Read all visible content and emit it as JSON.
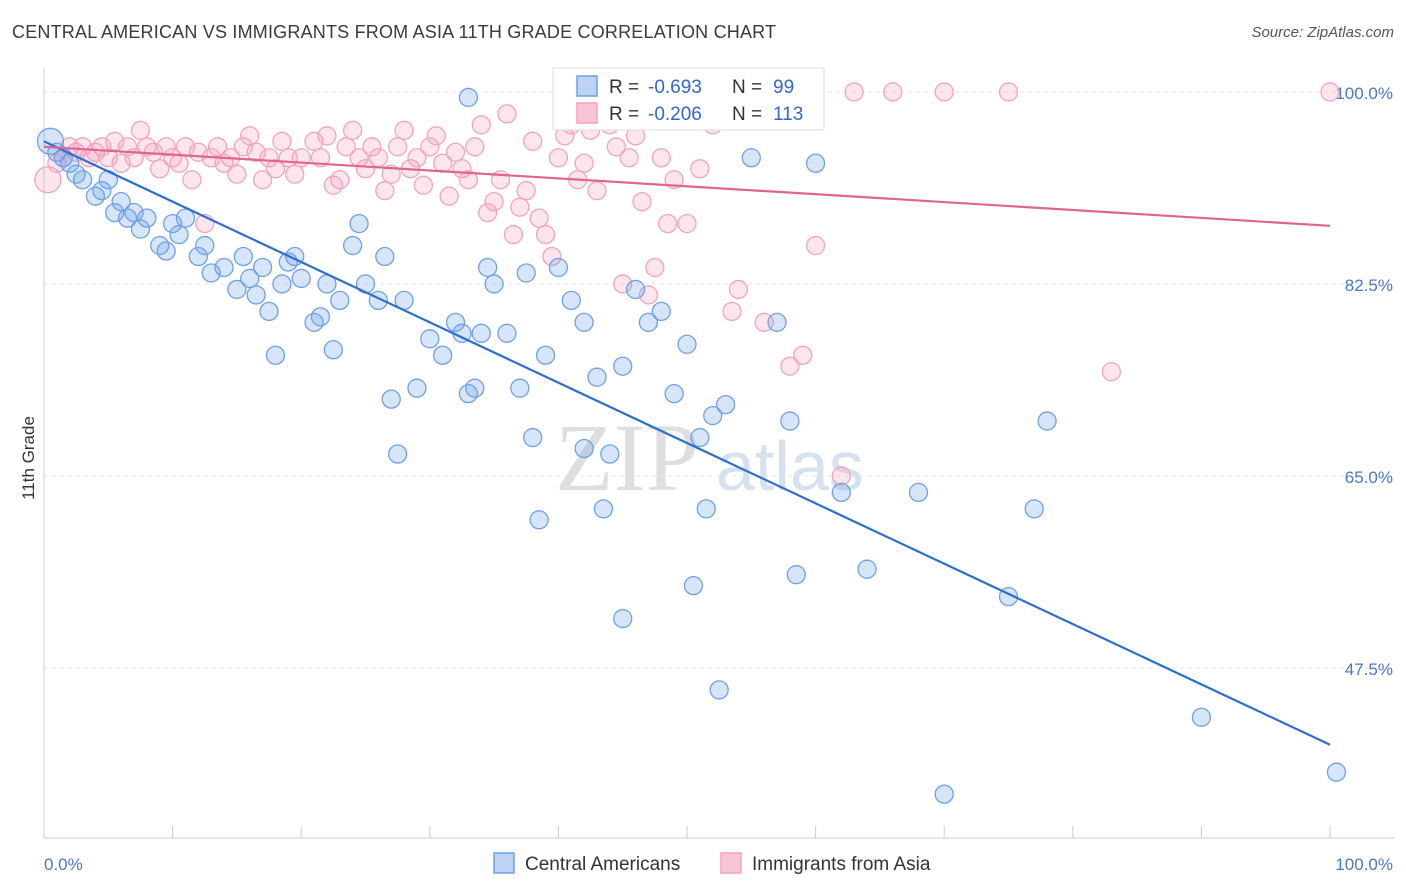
{
  "title": "CENTRAL AMERICAN VS IMMIGRANTS FROM ASIA 11TH GRADE CORRELATION CHART",
  "source": "Source: ZipAtlas.com",
  "watermark": {
    "zip": "ZIP",
    "atlas": "atlas"
  },
  "chart_data": {
    "type": "scatter",
    "ylabel": "11th Grade",
    "xlim": [
      0,
      100
    ],
    "ylim": [
      32,
      102
    ],
    "y_ticks": [
      {
        "value": 100,
        "label": "100.0%"
      },
      {
        "value": 82.5,
        "label": "82.5%"
      },
      {
        "value": 65,
        "label": "65.0%"
      },
      {
        "value": 47.5,
        "label": "47.5%"
      }
    ],
    "x_tick_labels": {
      "left": "0.0%",
      "right": "100.0%"
    },
    "grid": true,
    "legend_position": "top-center",
    "series": [
      {
        "name": "Central Americans",
        "color": "#6fa0e8",
        "line_color": "#2b6fcf",
        "R_label": "R =",
        "R": "-0.693",
        "N_label": "N =",
        "N": "99",
        "trend": {
          "x0": 0,
          "y0": 95.5,
          "x1": 100,
          "y1": 40.5
        },
        "points": [
          [
            0.5,
            95.5
          ],
          [
            1,
            94.5
          ],
          [
            1.5,
            94
          ],
          [
            2,
            93.5
          ],
          [
            2.5,
            92.5
          ],
          [
            3,
            92
          ],
          [
            4,
            90.5
          ],
          [
            4.5,
            91
          ],
          [
            5,
            92
          ],
          [
            5.5,
            89
          ],
          [
            6,
            90
          ],
          [
            6.5,
            88.5
          ],
          [
            7,
            89
          ],
          [
            7.5,
            87.5
          ],
          [
            8,
            88.5
          ],
          [
            9,
            86
          ],
          [
            9.5,
            85.5
          ],
          [
            10,
            88
          ],
          [
            10.5,
            87
          ],
          [
            11,
            88.5
          ],
          [
            12,
            85
          ],
          [
            12.5,
            86
          ],
          [
            13,
            83.5
          ],
          [
            14,
            84
          ],
          [
            15,
            82
          ],
          [
            15.5,
            85
          ],
          [
            16,
            83
          ],
          [
            16.5,
            81.5
          ],
          [
            17,
            84
          ],
          [
            17.5,
            80
          ],
          [
            18,
            76
          ],
          [
            18.5,
            82.5
          ],
          [
            19,
            84.5
          ],
          [
            19.5,
            85
          ],
          [
            20,
            83
          ],
          [
            21,
            79
          ],
          [
            21.5,
            79.5
          ],
          [
            22,
            82.5
          ],
          [
            22.5,
            76.5
          ],
          [
            23,
            81
          ],
          [
            24,
            86
          ],
          [
            24.5,
            88
          ],
          [
            25,
            82.5
          ],
          [
            26,
            81
          ],
          [
            26.5,
            85
          ],
          [
            27,
            72
          ],
          [
            27.5,
            67
          ],
          [
            28,
            81
          ],
          [
            29,
            73
          ],
          [
            30,
            77.5
          ],
          [
            31,
            76
          ],
          [
            32,
            79
          ],
          [
            32.5,
            78
          ],
          [
            33,
            72.5
          ],
          [
            33.5,
            73
          ],
          [
            34,
            78
          ],
          [
            34.5,
            84
          ],
          [
            35,
            82.5
          ],
          [
            36,
            78
          ],
          [
            37,
            73
          ],
          [
            37.5,
            83.5
          ],
          [
            38,
            68.5
          ],
          [
            39,
            76
          ],
          [
            40,
            84
          ],
          [
            41,
            81
          ],
          [
            42,
            79
          ],
          [
            43,
            74
          ],
          [
            43.5,
            62
          ],
          [
            44,
            67
          ],
          [
            45,
            75
          ],
          [
            46,
            82
          ],
          [
            47,
            79
          ],
          [
            48,
            80
          ],
          [
            49,
            72.5
          ],
          [
            50,
            77
          ],
          [
            50.5,
            55
          ],
          [
            51,
            68.5
          ],
          [
            52,
            70.5
          ],
          [
            52.5,
            45.5
          ],
          [
            53,
            71.5
          ],
          [
            55,
            94
          ],
          [
            57,
            79
          ],
          [
            58,
            70
          ],
          [
            60,
            93.5
          ],
          [
            62,
            63.5
          ],
          [
            64,
            56.5
          ],
          [
            68,
            63.5
          ],
          [
            70,
            36
          ],
          [
            75,
            54
          ],
          [
            77,
            62
          ],
          [
            78,
            70
          ],
          [
            45,
            52
          ],
          [
            33,
            99.5
          ],
          [
            51.5,
            62
          ],
          [
            38.5,
            61
          ],
          [
            58.5,
            56
          ],
          [
            42,
            67.5
          ],
          [
            90,
            43
          ],
          [
            100.5,
            38
          ]
        ]
      },
      {
        "name": "Immigrants from Asia",
        "color": "#f4a3bd",
        "line_color": "#e0658e",
        "R_label": "R =",
        "R": "-0.206",
        "N_label": "N =",
        "N": "113",
        "trend": {
          "x0": 0,
          "y0": 95.0,
          "x1": 100,
          "y1": 87.8
        },
        "points": [
          [
            0.3,
            92
          ],
          [
            1,
            93.5
          ],
          [
            1.5,
            94
          ],
          [
            2,
            95
          ],
          [
            2.5,
            94.5
          ],
          [
            3,
            95
          ],
          [
            3.5,
            94
          ],
          [
            4,
            94.5
          ],
          [
            4.5,
            95
          ],
          [
            5,
            94
          ],
          [
            5.5,
            95.5
          ],
          [
            6,
            93.5
          ],
          [
            6.5,
            95
          ],
          [
            7,
            94
          ],
          [
            7.5,
            96.5
          ],
          [
            8,
            95
          ],
          [
            8.5,
            94.5
          ],
          [
            9,
            93
          ],
          [
            9.5,
            95
          ],
          [
            10,
            94
          ],
          [
            10.5,
            93.5
          ],
          [
            11,
            95
          ],
          [
            11.5,
            92
          ],
          [
            12,
            94.5
          ],
          [
            12.5,
            88
          ],
          [
            13,
            94
          ],
          [
            13.5,
            95
          ],
          [
            14,
            93.5
          ],
          [
            14.5,
            94
          ],
          [
            15,
            92.5
          ],
          [
            15.5,
            95
          ],
          [
            16,
            96
          ],
          [
            16.5,
            94.5
          ],
          [
            17,
            92
          ],
          [
            17.5,
            94
          ],
          [
            18,
            93
          ],
          [
            18.5,
            95.5
          ],
          [
            19,
            94
          ],
          [
            19.5,
            92.5
          ],
          [
            20,
            94
          ],
          [
            21,
            95.5
          ],
          [
            21.5,
            94
          ],
          [
            22,
            96
          ],
          [
            22.5,
            91.5
          ],
          [
            23,
            92
          ],
          [
            23.5,
            95
          ],
          [
            24,
            96.5
          ],
          [
            24.5,
            94
          ],
          [
            25,
            93
          ],
          [
            25.5,
            95
          ],
          [
            26,
            94
          ],
          [
            26.5,
            91
          ],
          [
            27,
            92.5
          ],
          [
            27.5,
            95
          ],
          [
            28,
            96.5
          ],
          [
            28.5,
            93
          ],
          [
            29,
            94
          ],
          [
            29.5,
            91.5
          ],
          [
            30,
            95
          ],
          [
            30.5,
            96
          ],
          [
            31,
            93.5
          ],
          [
            31.5,
            90.5
          ],
          [
            32,
            94.5
          ],
          [
            32.5,
            93
          ],
          [
            33,
            92
          ],
          [
            33.5,
            95
          ],
          [
            34,
            97
          ],
          [
            34.5,
            89
          ],
          [
            35,
            90
          ],
          [
            35.5,
            92
          ],
          [
            36,
            98
          ],
          [
            36.5,
            87
          ],
          [
            37,
            89.5
          ],
          [
            37.5,
            91
          ],
          [
            38,
            95.5
          ],
          [
            38.5,
            88.5
          ],
          [
            39,
            87
          ],
          [
            39.5,
            85
          ],
          [
            40,
            94
          ],
          [
            40.5,
            96
          ],
          [
            41,
            97
          ],
          [
            41.5,
            92
          ],
          [
            42,
            93.5
          ],
          [
            42.5,
            96.5
          ],
          [
            43,
            91
          ],
          [
            44,
            97
          ],
          [
            44.5,
            95
          ],
          [
            45,
            82.5
          ],
          [
            45.5,
            94
          ],
          [
            46,
            96
          ],
          [
            46.5,
            90
          ],
          [
            47,
            81.5
          ],
          [
            47.5,
            84
          ],
          [
            48,
            94
          ],
          [
            48.5,
            88
          ],
          [
            49,
            92
          ],
          [
            50,
            88
          ],
          [
            51,
            93
          ],
          [
            52,
            97
          ],
          [
            53,
            100
          ],
          [
            53.5,
            80
          ],
          [
            54,
            82
          ],
          [
            56,
            79
          ],
          [
            58,
            75
          ],
          [
            59,
            76
          ],
          [
            60,
            86
          ],
          [
            62,
            65
          ],
          [
            63,
            100
          ],
          [
            66,
            100
          ],
          [
            70,
            100
          ],
          [
            75,
            100
          ],
          [
            83,
            74.5
          ],
          [
            100,
            100
          ]
        ]
      }
    ]
  }
}
